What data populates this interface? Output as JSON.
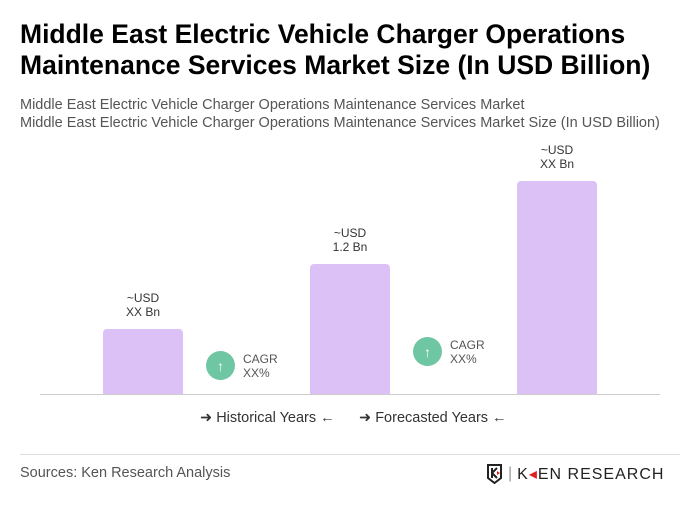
{
  "title": "Middle East Electric Vehicle Charger Operations Maintenance Services Market Size (In USD Billion)",
  "subtitle1": "Middle East Electric Vehicle Charger Operations Maintenance Services Market",
  "subtitle2": "Middle East Electric Vehicle Charger Operations Maintenance Services Market Size (In USD Billion)",
  "chart_data": {
    "type": "bar",
    "values": [
      0.6,
      1.2,
      1.97
    ],
    "data_labels": [
      [
        "~USD",
        "XX Bn"
      ],
      [
        "~USD",
        "1.2 Bn"
      ],
      [
        "~USD",
        "XX Bn"
      ]
    ],
    "bar_color": "#dcc1f7",
    "cagr": [
      {
        "line1": "CAGR",
        "line2": "XX%"
      },
      {
        "line1": "CAGR",
        "line2": "XX%"
      }
    ],
    "cagr_color": "#6fc6a2",
    "legend": [
      "Historical Years",
      "Forecasted Years"
    ],
    "legend_placement": "bottom",
    "grid": false
  },
  "sources": "Sources: Ken Research Analysis",
  "logo_text": "KEN RESEARCH"
}
